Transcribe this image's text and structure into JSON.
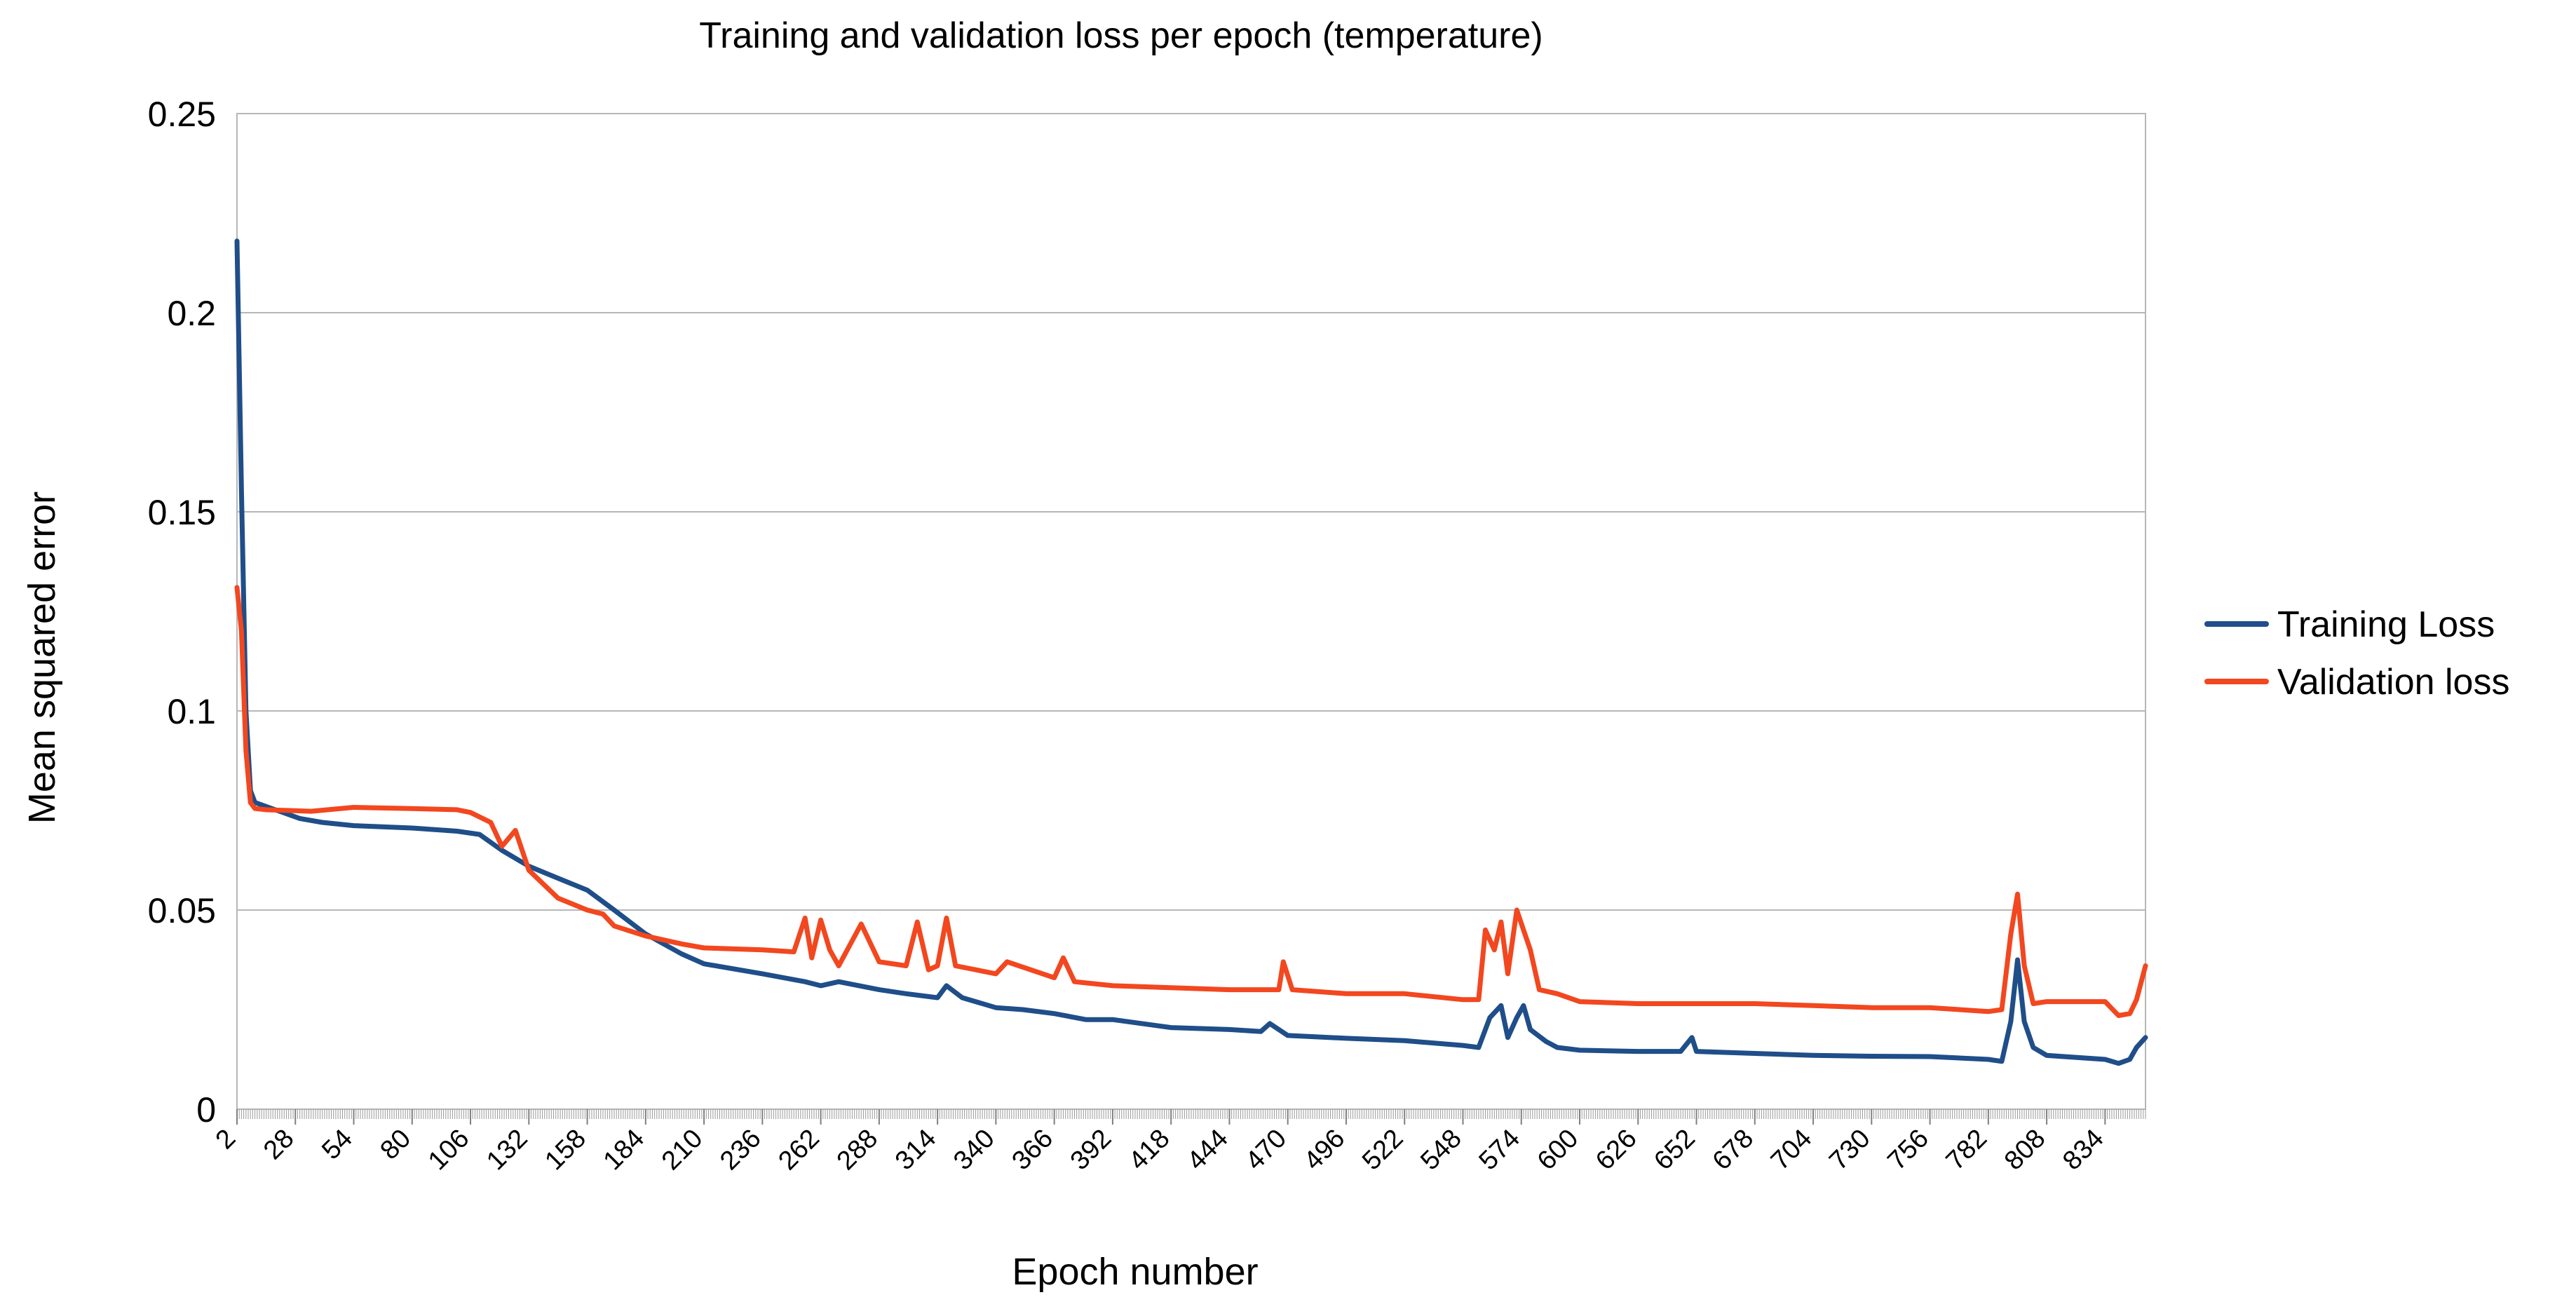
{
  "chart_data": {
    "type": "line",
    "title": "Training and validation loss per epoch (temperature)",
    "xlabel": "Epoch number",
    "ylabel": "Mean squared error",
    "xlim": [
      2,
      852
    ],
    "ylim": [
      0,
      0.25
    ],
    "grid": true,
    "legend_position": "right",
    "y_ticks": [
      0,
      0.05,
      0.1,
      0.15,
      0.2,
      0.25
    ],
    "y_tick_labels": [
      "0",
      "0.05",
      "0.1",
      "0.15",
      "0.2",
      "0.25"
    ],
    "x_ticks": [
      2,
      28,
      54,
      80,
      106,
      132,
      158,
      184,
      210,
      236,
      262,
      288,
      314,
      340,
      366,
      392,
      418,
      444,
      470,
      496,
      522,
      548,
      574,
      600,
      626,
      652,
      678,
      704,
      730,
      756,
      782,
      808,
      834
    ],
    "x_tick_labels": [
      "2",
      "28",
      "54",
      "80",
      "106",
      "132",
      "158",
      "184",
      "210",
      "236",
      "262",
      "288",
      "314",
      "340",
      "366",
      "392",
      "418",
      "444",
      "470",
      "496",
      "522",
      "548",
      "574",
      "600",
      "626",
      "652",
      "678",
      "704",
      "730",
      "756",
      "782",
      "808",
      "834"
    ],
    "series": [
      {
        "name": "Training Loss",
        "color": "#1F4E89",
        "points": [
          [
            2,
            0.218
          ],
          [
            4,
            0.155
          ],
          [
            6,
            0.1
          ],
          [
            8,
            0.08
          ],
          [
            10,
            0.077
          ],
          [
            15,
            0.076
          ],
          [
            20,
            0.075
          ],
          [
            30,
            0.073
          ],
          [
            40,
            0.072
          ],
          [
            54,
            0.0712
          ],
          [
            80,
            0.0706
          ],
          [
            100,
            0.0698
          ],
          [
            110,
            0.069
          ],
          [
            120,
            0.065
          ],
          [
            132,
            0.061
          ],
          [
            145,
            0.058
          ],
          [
            158,
            0.055
          ],
          [
            170,
            0.05
          ],
          [
            184,
            0.044
          ],
          [
            200,
            0.039
          ],
          [
            210,
            0.0365
          ],
          [
            236,
            0.034
          ],
          [
            255,
            0.032
          ],
          [
            262,
            0.031
          ],
          [
            270,
            0.032
          ],
          [
            288,
            0.03
          ],
          [
            300,
            0.029
          ],
          [
            314,
            0.028
          ],
          [
            318,
            0.031
          ],
          [
            325,
            0.028
          ],
          [
            340,
            0.0255
          ],
          [
            352,
            0.025
          ],
          [
            366,
            0.024
          ],
          [
            380,
            0.0225
          ],
          [
            392,
            0.0225
          ],
          [
            418,
            0.0205
          ],
          [
            444,
            0.02
          ],
          [
            458,
            0.0195
          ],
          [
            462,
            0.0215
          ],
          [
            470,
            0.0185
          ],
          [
            496,
            0.0178
          ],
          [
            522,
            0.0172
          ],
          [
            548,
            0.016
          ],
          [
            555,
            0.0155
          ],
          [
            560,
            0.023
          ],
          [
            565,
            0.026
          ],
          [
            568,
            0.018
          ],
          [
            572,
            0.023
          ],
          [
            575,
            0.026
          ],
          [
            578,
            0.02
          ],
          [
            585,
            0.017
          ],
          [
            590,
            0.0155
          ],
          [
            600,
            0.0148
          ],
          [
            626,
            0.0145
          ],
          [
            645,
            0.0145
          ],
          [
            650,
            0.018
          ],
          [
            652,
            0.0145
          ],
          [
            678,
            0.014
          ],
          [
            704,
            0.0135
          ],
          [
            730,
            0.0133
          ],
          [
            756,
            0.0132
          ],
          [
            782,
            0.0125
          ],
          [
            788,
            0.012
          ],
          [
            792,
            0.022
          ],
          [
            795,
            0.0375
          ],
          [
            798,
            0.022
          ],
          [
            802,
            0.0155
          ],
          [
            808,
            0.0135
          ],
          [
            834,
            0.0125
          ],
          [
            840,
            0.0115
          ],
          [
            845,
            0.0125
          ],
          [
            848,
            0.0155
          ],
          [
            852,
            0.018
          ]
        ]
      },
      {
        "name": "Validation loss",
        "color": "#F2471F",
        "points": [
          [
            2,
            0.131
          ],
          [
            4,
            0.12
          ],
          [
            6,
            0.09
          ],
          [
            8,
            0.077
          ],
          [
            10,
            0.0755
          ],
          [
            15,
            0.0752
          ],
          [
            25,
            0.075
          ],
          [
            35,
            0.0748
          ],
          [
            54,
            0.0758
          ],
          [
            80,
            0.0755
          ],
          [
            100,
            0.0752
          ],
          [
            106,
            0.0745
          ],
          [
            115,
            0.072
          ],
          [
            120,
            0.066
          ],
          [
            126,
            0.07
          ],
          [
            132,
            0.06
          ],
          [
            145,
            0.053
          ],
          [
            158,
            0.05
          ],
          [
            165,
            0.049
          ],
          [
            170,
            0.046
          ],
          [
            184,
            0.0435
          ],
          [
            200,
            0.0415
          ],
          [
            210,
            0.0405
          ],
          [
            236,
            0.04
          ],
          [
            250,
            0.0395
          ],
          [
            255,
            0.048
          ],
          [
            258,
            0.038
          ],
          [
            262,
            0.0475
          ],
          [
            266,
            0.04
          ],
          [
            270,
            0.036
          ],
          [
            280,
            0.0465
          ],
          [
            288,
            0.037
          ],
          [
            300,
            0.036
          ],
          [
            305,
            0.047
          ],
          [
            310,
            0.035
          ],
          [
            314,
            0.036
          ],
          [
            318,
            0.048
          ],
          [
            322,
            0.036
          ],
          [
            340,
            0.034
          ],
          [
            345,
            0.037
          ],
          [
            366,
            0.033
          ],
          [
            370,
            0.038
          ],
          [
            375,
            0.032
          ],
          [
            392,
            0.031
          ],
          [
            418,
            0.0305
          ],
          [
            444,
            0.03
          ],
          [
            466,
            0.03
          ],
          [
            468,
            0.037
          ],
          [
            472,
            0.03
          ],
          [
            496,
            0.029
          ],
          [
            522,
            0.029
          ],
          [
            548,
            0.0275
          ],
          [
            555,
            0.0275
          ],
          [
            558,
            0.045
          ],
          [
            562,
            0.04
          ],
          [
            565,
            0.047
          ],
          [
            568,
            0.034
          ],
          [
            572,
            0.05
          ],
          [
            575,
            0.045
          ],
          [
            578,
            0.04
          ],
          [
            582,
            0.03
          ],
          [
            590,
            0.029
          ],
          [
            600,
            0.027
          ],
          [
            626,
            0.0265
          ],
          [
            652,
            0.0265
          ],
          [
            678,
            0.0265
          ],
          [
            704,
            0.026
          ],
          [
            730,
            0.0255
          ],
          [
            756,
            0.0255
          ],
          [
            782,
            0.0245
          ],
          [
            788,
            0.025
          ],
          [
            792,
            0.044
          ],
          [
            795,
            0.054
          ],
          [
            798,
            0.036
          ],
          [
            802,
            0.0265
          ],
          [
            808,
            0.027
          ],
          [
            834,
            0.027
          ],
          [
            840,
            0.0235
          ],
          [
            845,
            0.024
          ],
          [
            848,
            0.0275
          ],
          [
            852,
            0.036
          ]
        ]
      }
    ]
  }
}
